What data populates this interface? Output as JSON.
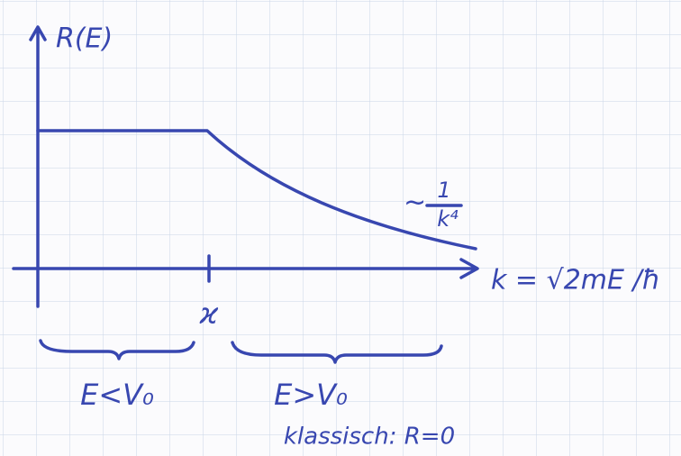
{
  "y_axis_label": "R(E)",
  "x_axis_label": "k = √2mE /ħ",
  "tick_label": "ϰ",
  "asymptote": {
    "prefix": "~",
    "numerator": "1",
    "denominator": "k⁴"
  },
  "regions": [
    {
      "label": "E<V₀"
    },
    {
      "label": "E>V₀",
      "note": "klassisch: R=0"
    }
  ]
}
